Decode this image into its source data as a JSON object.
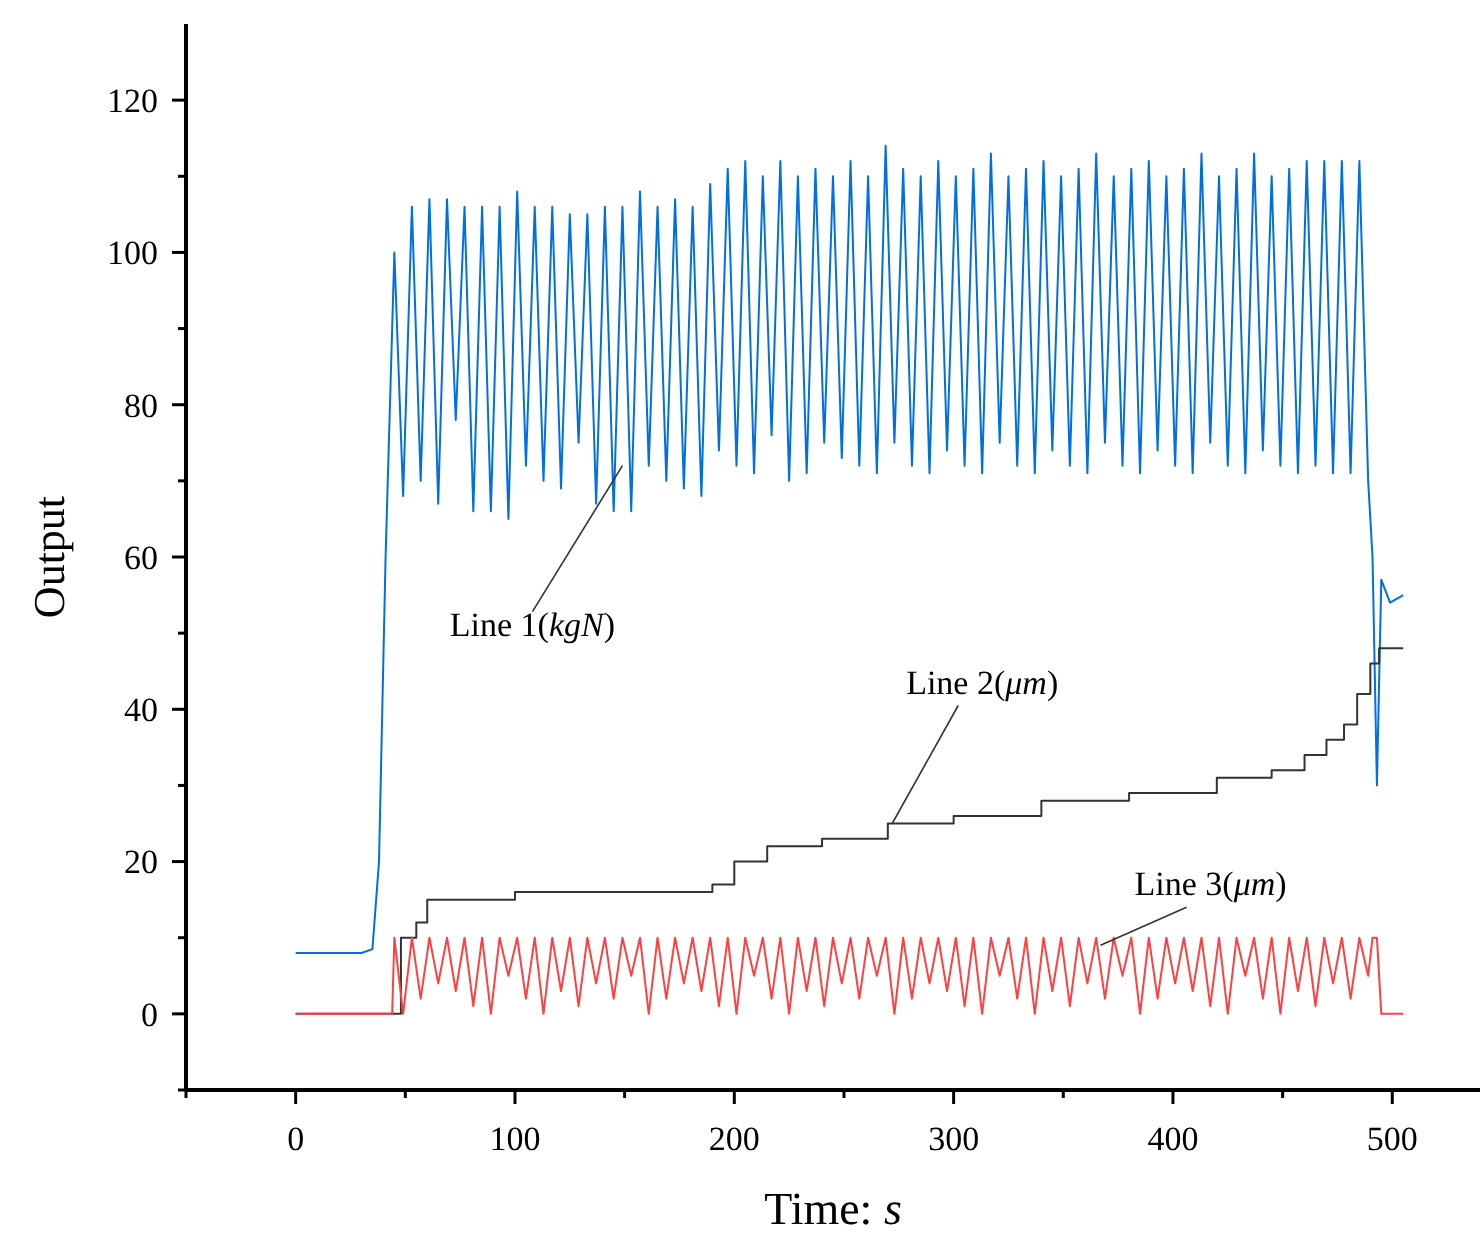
{
  "chart_data": {
    "type": "line",
    "xlabel": "Time: s",
    "ylabel": "Output",
    "xlim": [
      -50,
      540
    ],
    "ylim": [
      -10,
      130
    ],
    "xticks": [
      {
        "value": -50,
        "label": null
      },
      0,
      {
        "value": 50,
        "label": null
      },
      100,
      {
        "value": 150,
        "label": null
      },
      200,
      {
        "value": 250,
        "label": null
      },
      300,
      {
        "value": 350,
        "label": null
      },
      400,
      {
        "value": 450,
        "label": null
      },
      500
    ],
    "yticks": [
      {
        "value": -10,
        "label": null
      },
      0,
      {
        "value": 10,
        "label": null
      },
      20,
      {
        "value": 30,
        "label": null
      },
      40,
      {
        "value": 50,
        "label": null
      },
      60,
      {
        "value": 70,
        "label": null
      },
      80,
      {
        "value": 90,
        "label": null
      },
      100,
      {
        "value": 110,
        "label": null
      },
      120
    ],
    "grid": false,
    "marker": "none",
    "line_style": "solid",
    "x": [
      0,
      10,
      20,
      30,
      35,
      38,
      41,
      44,
      45,
      49,
      53,
      57,
      61,
      65,
      69,
      73,
      77,
      81,
      85,
      89,
      93,
      97,
      101,
      105,
      109,
      113,
      117,
      121,
      125,
      129,
      133,
      137,
      141,
      145,
      149,
      153,
      157,
      161,
      165,
      169,
      173,
      177,
      181,
      185,
      189,
      193,
      197,
      201,
      205,
      209,
      213,
      217,
      221,
      225,
      229,
      233,
      237,
      241,
      245,
      249,
      253,
      257,
      261,
      265,
      269,
      273,
      277,
      281,
      285,
      289,
      293,
      297,
      301,
      305,
      309,
      313,
      317,
      321,
      325,
      329,
      333,
      337,
      341,
      345,
      349,
      353,
      357,
      361,
      365,
      369,
      373,
      377,
      381,
      385,
      389,
      393,
      397,
      401,
      405,
      409,
      413,
      417,
      421,
      425,
      429,
      433,
      437,
      441,
      445,
      449,
      453,
      457,
      461,
      465,
      469,
      473,
      477,
      481,
      485,
      489,
      491,
      493,
      495,
      499,
      505
    ],
    "series": [
      {
        "color": "#0070e0",
        "values": [
          8,
          8,
          8,
          8,
          8.5,
          20,
          60,
          90,
          100,
          68,
          106,
          70,
          107,
          67,
          107,
          78,
          106,
          66,
          106,
          66,
          106,
          65,
          108,
          72,
          106,
          70,
          106,
          69,
          105,
          75,
          105,
          67,
          106,
          66,
          106,
          66,
          108,
          72,
          106,
          70,
          107,
          69,
          106,
          68,
          109,
          74,
          111,
          72,
          112,
          71,
          110,
          76,
          112,
          70,
          110,
          71,
          111,
          75,
          110,
          73,
          112,
          72,
          110,
          71,
          114,
          75,
          111,
          72,
          110,
          71,
          112,
          74,
          110,
          72,
          111,
          71,
          113,
          75,
          110,
          72,
          111,
          71,
          112,
          74,
          110,
          72,
          111,
          71,
          113,
          75,
          110,
          72,
          111,
          71,
          112,
          74,
          110,
          72,
          111,
          71,
          113,
          75,
          110,
          72,
          111,
          71,
          113,
          74,
          110,
          72,
          111,
          71,
          112,
          72,
          112,
          71,
          112,
          71,
          112,
          70,
          60,
          30,
          57,
          54,
          55
        ]
      },
      {
        "type": "step",
        "color": "#333333",
        "x": [
          0,
          48,
          55,
          60,
          100,
          190,
          200,
          215,
          240,
          270,
          300,
          340,
          380,
          420,
          445,
          460,
          470,
          478,
          484,
          490,
          494,
          505
        ],
        "values": [
          0,
          10,
          12,
          15,
          16,
          17,
          20,
          22,
          23,
          25,
          26,
          28,
          29,
          31,
          32,
          34,
          36,
          38,
          42,
          46,
          48,
          48
        ]
      },
      {
        "color": "#ff4040",
        "values": [
          0,
          0,
          0,
          0,
          0,
          0,
          0,
          0,
          10,
          0,
          10,
          2,
          10,
          4,
          10,
          3,
          10,
          1,
          10,
          0,
          10,
          5,
          10,
          2,
          10,
          0,
          10,
          3,
          10,
          1,
          10,
          4,
          10,
          2,
          10,
          5,
          10,
          0,
          10,
          2,
          10,
          4,
          10,
          3,
          10,
          1,
          10,
          0,
          10,
          5,
          10,
          2,
          10,
          0,
          10,
          3,
          10,
          1,
          10,
          4,
          10,
          2,
          10,
          5,
          10,
          0,
          10,
          2,
          10,
          4,
          10,
          3,
          10,
          1,
          10,
          0,
          10,
          5,
          10,
          2,
          10,
          0,
          10,
          3,
          10,
          1,
          10,
          4,
          10,
          2,
          10,
          5,
          10,
          0,
          10,
          2,
          10,
          4,
          10,
          3,
          10,
          1,
          10,
          0,
          10,
          5,
          10,
          2,
          10,
          0,
          10,
          3,
          10,
          1,
          10,
          4,
          10,
          2,
          10,
          5,
          10,
          10,
          0,
          0,
          0
        ]
      }
    ],
    "annotations": [
      {
        "text": "Line 1(kgN)",
        "x": 149,
        "y": 72
      },
      {
        "text": "Line 2(μm)",
        "x": 272,
        "y": 25
      },
      {
        "text": "Line 3(μm)",
        "x": 367,
        "y": 9
      }
    ]
  }
}
